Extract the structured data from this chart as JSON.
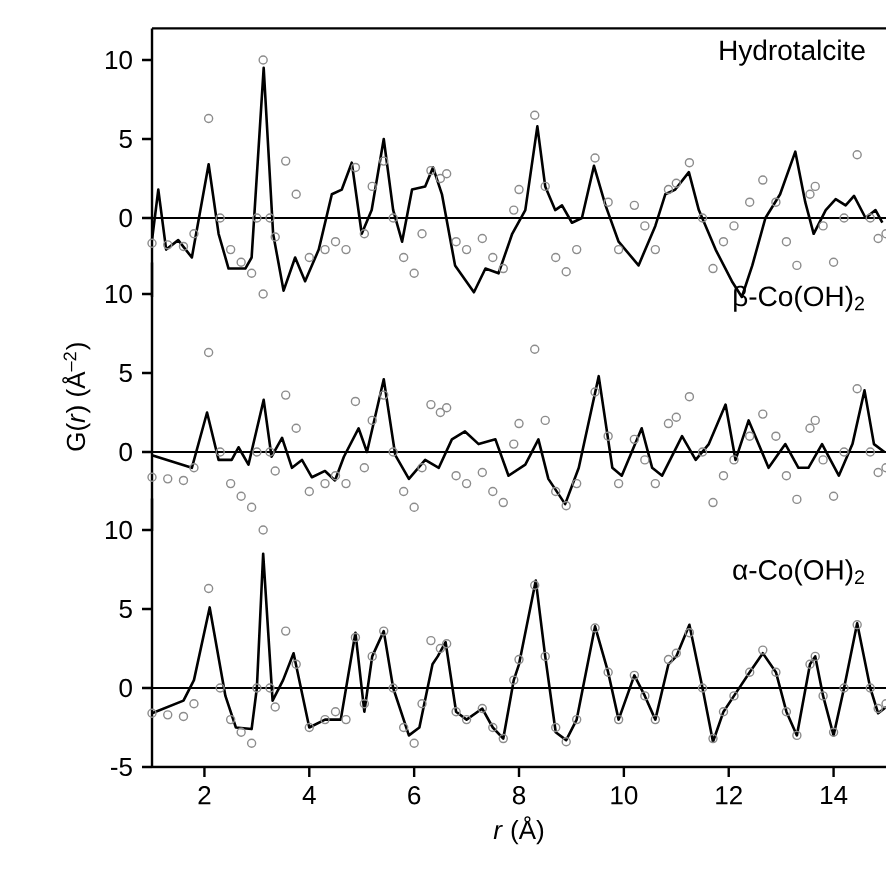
{
  "chart_data": [
    {
      "type": "line",
      "title": "Hydrotalcite",
      "xlim": [
        1,
        15
      ],
      "ylim": [
        -5,
        12
      ],
      "yticks": [
        0,
        5,
        10
      ],
      "tick_labels": "y",
      "ref_lines": [
        {
          "axis": "y",
          "value": 0,
          "color": "#000000"
        }
      ],
      "series": [
        {
          "type": "scatter",
          "marker": "circle",
          "color": "#8c8c8c",
          "x": [
            1.0,
            1.3,
            1.6,
            1.8,
            2.08,
            2.3,
            2.5,
            2.7,
            2.9,
            3.0,
            3.12,
            3.25,
            3.35,
            3.55,
            3.75,
            4.0,
            4.3,
            4.5,
            4.7,
            4.88,
            5.05,
            5.2,
            5.42,
            5.6,
            5.8,
            6.0,
            6.15,
            6.32,
            6.5,
            6.62,
            6.8,
            7.0,
            7.3,
            7.5,
            7.7,
            7.9,
            8.0,
            8.3,
            8.5,
            8.7,
            8.9,
            9.1,
            9.45,
            9.7,
            9.9,
            10.2,
            10.4,
            10.6,
            10.85,
            11.0,
            11.25,
            11.5,
            11.7,
            11.9,
            12.1,
            12.4,
            12.65,
            12.9,
            13.1,
            13.3,
            13.55,
            13.65,
            13.8,
            14.0,
            14.2,
            14.45,
            14.7,
            14.85,
            15.0
          ],
          "values": [
            -1.6,
            -1.7,
            -1.8,
            -1.0,
            6.3,
            0,
            -2.0,
            -2.8,
            -3.5,
            0,
            10,
            0,
            -1.2,
            3.6,
            1.5,
            -2.5,
            -2.0,
            -1.5,
            -2.0,
            3.2,
            -1.0,
            2.0,
            3.6,
            0,
            -2.5,
            -3.5,
            -1,
            3.0,
            2.5,
            2.8,
            -1.5,
            -2.0,
            -1.3,
            -2.5,
            -3.2,
            0.5,
            1.8,
            6.5,
            2,
            -2.5,
            -3.4,
            -2,
            3.8,
            1.0,
            -2.0,
            0.8,
            -0.5,
            -2.0,
            1.8,
            2.2,
            3.5,
            0,
            -3.2,
            -1.5,
            -0.5,
            1.0,
            2.4,
            1.0,
            -1.5,
            -3.0,
            1.5,
            2.0,
            -0.5,
            -2.8,
            0,
            4.0,
            0,
            -1.3,
            -1.0
          ]
        },
        {
          "color": "#000000",
          "x": [
            1.0,
            1.12,
            1.27,
            1.5,
            1.76,
            2.08,
            2.27,
            2.46,
            2.78,
            2.9,
            3.13,
            3.31,
            3.51,
            3.73,
            3.92,
            4.18,
            4.43,
            4.62,
            4.81,
            5.0,
            5.19,
            5.42,
            5.6,
            5.77,
            5.96,
            6.21,
            6.36,
            6.53,
            6.78,
            7.14,
            7.36,
            7.61,
            7.87,
            8.12,
            8.35,
            8.5,
            8.69,
            8.82,
            9.01,
            9.2,
            9.43,
            9.65,
            9.9,
            10.28,
            10.6,
            10.79,
            10.98,
            11.24,
            11.43,
            11.75,
            12.06,
            12.25,
            12.45,
            12.7,
            12.98,
            13.27,
            13.46,
            13.62,
            13.85,
            14.04,
            14.23,
            14.39,
            14.61,
            14.8,
            14.93
          ],
          "values": [
            -1.4,
            1.8,
            -2,
            -1.4,
            -2.5,
            3.4,
            -1.0,
            -3.2,
            -3.2,
            -2.5,
            9.5,
            -1,
            -4.6,
            -2.5,
            -4.0,
            -2.0,
            1.5,
            1.8,
            3.5,
            -1.0,
            0.5,
            5.0,
            0.5,
            -1.5,
            1.8,
            2.0,
            3.2,
            1.5,
            -3.0,
            -4.7,
            -3.2,
            -3.5,
            -1.0,
            0.5,
            5.8,
            2,
            0.5,
            0.8,
            -0.3,
            0,
            3.3,
            0.8,
            -1.5,
            -3.0,
            -0.5,
            1.5,
            1.8,
            2.9,
            0.5,
            -2.0,
            -4.0,
            -5.0,
            -3.0,
            0,
            1.5,
            4.2,
            1.0,
            -1.0,
            0.5,
            1.2,
            0.8,
            1.4,
            0,
            0.5,
            -0.3
          ]
        }
      ]
    },
    {
      "type": "line",
      "title": "β-Co(OH)$_{2}$",
      "ylabel": "G(*r*) (Å$^{–2}$)",
      "xlim": [
        1,
        15
      ],
      "ylim": [
        -5,
        12
      ],
      "yticks": [
        0,
        5,
        10
      ],
      "tick_labels": "y",
      "ref_lines": [
        {
          "axis": "y",
          "value": 0,
          "color": "#000000"
        }
      ],
      "series": [
        {
          "type": "scatter",
          "marker": "circle",
          "color": "#8c8c8c",
          "x": [
            1.0,
            1.3,
            1.6,
            1.8,
            2.08,
            2.3,
            2.5,
            2.7,
            2.9,
            3.0,
            3.12,
            3.25,
            3.35,
            3.55,
            3.75,
            4.0,
            4.3,
            4.5,
            4.7,
            4.88,
            5.05,
            5.2,
            5.42,
            5.6,
            5.8,
            6.0,
            6.15,
            6.32,
            6.5,
            6.62,
            6.8,
            7.0,
            7.3,
            7.5,
            7.7,
            7.9,
            8.0,
            8.3,
            8.5,
            8.7,
            8.9,
            9.1,
            9.45,
            9.7,
            9.9,
            10.2,
            10.4,
            10.6,
            10.85,
            11.0,
            11.25,
            11.5,
            11.7,
            11.9,
            12.1,
            12.4,
            12.65,
            12.9,
            13.1,
            13.3,
            13.55,
            13.65,
            13.8,
            14.0,
            14.2,
            14.45,
            14.7,
            14.85,
            15.0
          ],
          "values": [
            -1.6,
            -1.7,
            -1.8,
            -1.0,
            6.3,
            0,
            -2.0,
            -2.8,
            -3.5,
            0,
            10,
            0,
            -1.2,
            3.6,
            1.5,
            -2.5,
            -2.0,
            -1.5,
            -2.0,
            3.2,
            -1.0,
            2.0,
            3.6,
            0,
            -2.5,
            -3.5,
            -1,
            3.0,
            2.5,
            2.8,
            -1.5,
            -2.0,
            -1.3,
            -2.5,
            -3.2,
            0.5,
            1.8,
            6.5,
            2,
            -2.5,
            -3.4,
            -2,
            3.8,
            1.0,
            -2.0,
            0.8,
            -0.5,
            -2.0,
            1.8,
            2.2,
            3.5,
            0,
            -3.2,
            -1.5,
            -0.5,
            1.0,
            2.4,
            1.0,
            -1.5,
            -3.0,
            1.5,
            2.0,
            -0.5,
            -2.8,
            0,
            4.0,
            0,
            -1.3,
            -1.0
          ]
        },
        {
          "color": "#000000",
          "x": [
            1.0,
            1.76,
            2.05,
            2.27,
            2.52,
            2.65,
            2.84,
            3.13,
            3.28,
            3.48,
            3.67,
            3.86,
            4.05,
            4.3,
            4.49,
            4.66,
            4.94,
            5.1,
            5.42,
            5.64,
            5.9,
            6.21,
            6.47,
            6.72,
            6.97,
            7.23,
            7.55,
            7.8,
            8.12,
            8.37,
            8.56,
            8.88,
            9.14,
            9.52,
            9.78,
            9.96,
            10.34,
            10.54,
            10.73,
            11.11,
            11.37,
            11.62,
            11.94,
            12.13,
            12.38,
            12.76,
            13.08,
            13.33,
            13.52,
            13.78,
            14.1,
            14.36,
            14.59,
            14.77,
            14.97
          ],
          "values": [
            -0.2,
            -1.0,
            2.5,
            -0.5,
            -0.5,
            0.3,
            -0.8,
            3.3,
            -0.3,
            0.9,
            -1.0,
            -0.5,
            -1.6,
            -1.2,
            -1.8,
            -0.3,
            1.5,
            0,
            4.6,
            -0.2,
            -1.7,
            -0.5,
            -1.0,
            0.8,
            1.3,
            0.5,
            0.8,
            -1.5,
            -0.8,
            0.8,
            -1.7,
            -3.3,
            -1.0,
            4.8,
            -1.0,
            -1.5,
            1.5,
            -1.0,
            -1.5,
            1.0,
            -0.5,
            0.5,
            3.0,
            -0.5,
            2.0,
            -1.0,
            0.5,
            -1.0,
            -1.0,
            0.5,
            -1.5,
            0.5,
            3.9,
            0.5,
            0
          ]
        }
      ]
    },
    {
      "type": "line",
      "title": "α-Co(OH)$_{2}$",
      "xlabel": "*r* (Å)",
      "xlim": [
        1,
        15
      ],
      "xticks": [
        2,
        4,
        6,
        8,
        10,
        12,
        14
      ],
      "ylim": [
        -5,
        12
      ],
      "yticks": [
        -5,
        0,
        5,
        10
      ],
      "ref_lines": [
        {
          "axis": "y",
          "value": 0,
          "color": "#000000"
        }
      ],
      "series": [
        {
          "type": "scatter",
          "marker": "circle",
          "color": "#8c8c8c",
          "x": [
            1.0,
            1.3,
            1.6,
            1.8,
            2.08,
            2.3,
            2.5,
            2.7,
            2.9,
            3.0,
            3.12,
            3.25,
            3.35,
            3.55,
            3.75,
            4.0,
            4.3,
            4.5,
            4.7,
            4.88,
            5.05,
            5.2,
            5.42,
            5.6,
            5.8,
            6.0,
            6.15,
            6.32,
            6.5,
            6.62,
            6.8,
            7.0,
            7.3,
            7.5,
            7.7,
            7.9,
            8.0,
            8.3,
            8.5,
            8.7,
            8.9,
            9.1,
            9.45,
            9.7,
            9.9,
            10.2,
            10.4,
            10.6,
            10.85,
            11.0,
            11.25,
            11.5,
            11.7,
            11.9,
            12.1,
            12.4,
            12.65,
            12.9,
            13.1,
            13.3,
            13.55,
            13.65,
            13.8,
            14.0,
            14.2,
            14.45,
            14.7,
            14.85,
            15.0
          ],
          "values": [
            -1.6,
            -1.7,
            -1.8,
            -1.0,
            6.3,
            0,
            -2.0,
            -2.8,
            -3.5,
            0,
            10,
            0,
            -1.2,
            3.6,
            1.5,
            -2.5,
            -2.0,
            -1.5,
            -2.0,
            3.2,
            -1.0,
            2.0,
            3.6,
            0,
            -2.5,
            -3.5,
            -1,
            3.0,
            2.5,
            2.8,
            -1.5,
            -2.0,
            -1.3,
            -2.5,
            -3.2,
            0.5,
            1.8,
            6.5,
            2,
            -2.5,
            -3.4,
            -2,
            3.8,
            1.0,
            -2.0,
            0.8,
            -0.5,
            -2.0,
            1.8,
            2.2,
            3.5,
            0,
            -3.2,
            -1.5,
            -0.5,
            1.0,
            2.4,
            1.0,
            -1.5,
            -3.0,
            1.5,
            2.0,
            -0.5,
            -2.8,
            0,
            4.0,
            0,
            -1.3,
            -1.0
          ]
        },
        {
          "color": "#000000",
          "x": [
            1.0,
            1.6,
            1.8,
            2.1,
            2.4,
            2.6,
            2.9,
            3.0,
            3.12,
            3.3,
            3.5,
            3.7,
            4.0,
            4.3,
            4.6,
            4.88,
            5.05,
            5.2,
            5.42,
            5.6,
            5.9,
            6.1,
            6.35,
            6.45,
            6.6,
            6.8,
            7.0,
            7.3,
            7.5,
            7.7,
            7.9,
            8.0,
            8.32,
            8.5,
            8.7,
            8.9,
            9.1,
            9.45,
            9.7,
            9.9,
            10.2,
            10.4,
            10.6,
            10.85,
            11.0,
            11.25,
            11.5,
            11.7,
            11.9,
            12.1,
            12.4,
            12.65,
            12.9,
            13.1,
            13.3,
            13.55,
            13.65,
            13.8,
            14.0,
            14.2,
            14.45,
            14.7,
            14.85,
            15.0
          ],
          "values": [
            -1.6,
            -0.8,
            0.5,
            5.1,
            -0.5,
            -2.5,
            -2.6,
            0,
            8.5,
            -0.8,
            0.5,
            2.2,
            -2.5,
            -2.0,
            -2.0,
            3.5,
            -1.5,
            2.0,
            3.6,
            0,
            -3.0,
            -2.5,
            1.5,
            2.0,
            2.9,
            -1.5,
            -2.0,
            -1.3,
            -2.5,
            -3.2,
            0.5,
            1.5,
            6.8,
            2,
            -2.8,
            -3.3,
            -2,
            3.9,
            1.0,
            -2.0,
            0.8,
            -0.5,
            -2.0,
            1.5,
            2.0,
            4.0,
            0,
            -3.4,
            -1.5,
            -0.5,
            1.0,
            2.2,
            1.0,
            -1.5,
            -3.0,
            1.5,
            2.0,
            -0.5,
            -3.0,
            0,
            4.1,
            0,
            -1.6,
            -1.2
          ]
        }
      ]
    }
  ]
}
